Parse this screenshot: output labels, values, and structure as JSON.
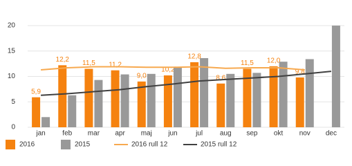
{
  "chart_data": {
    "type": "bar",
    "categories": [
      "jan",
      "feb",
      "mar",
      "apr",
      "maj",
      "jun",
      "jul",
      "aug",
      "sep",
      "okt",
      "nov",
      "dec"
    ],
    "series": [
      {
        "name": "2016",
        "color": "#f5820f",
        "values": [
          5.9,
          12.2,
          11.5,
          11.2,
          9.0,
          10.2,
          12.8,
          8.6,
          11.5,
          12.0,
          9.8,
          null
        ],
        "value_labels": [
          "5,9",
          "12,2",
          "11,5",
          "11,2",
          "9,0",
          "10,2",
          "12,8",
          "8,6",
          "11,5",
          "12,0",
          "9,8",
          null
        ]
      },
      {
        "name": "2015",
        "color": "#999999",
        "values": [
          2.0,
          6.3,
          9.3,
          10.4,
          10.5,
          11.7,
          13.6,
          10.5,
          10.7,
          12.9,
          13.4,
          20.0
        ]
      },
      {
        "name": "2016 rull 12",
        "type": "line",
        "color": "#f7a94f",
        "values": [
          11.3,
          11.7,
          11.9,
          11.9,
          11.8,
          11.8,
          11.9,
          11.6,
          11.7,
          11.7,
          11.3,
          null
        ]
      },
      {
        "name": "2015 rull 12",
        "type": "line",
        "color": "#404040",
        "values": [
          6.3,
          6.6,
          7.0,
          7.4,
          8.0,
          8.5,
          9.1,
          9.4,
          9.7,
          10.0,
          10.5,
          11.0
        ]
      }
    ],
    "ylim": [
      0,
      20
    ],
    "yticks": [
      0,
      5,
      10,
      15,
      20
    ],
    "grid": true
  }
}
